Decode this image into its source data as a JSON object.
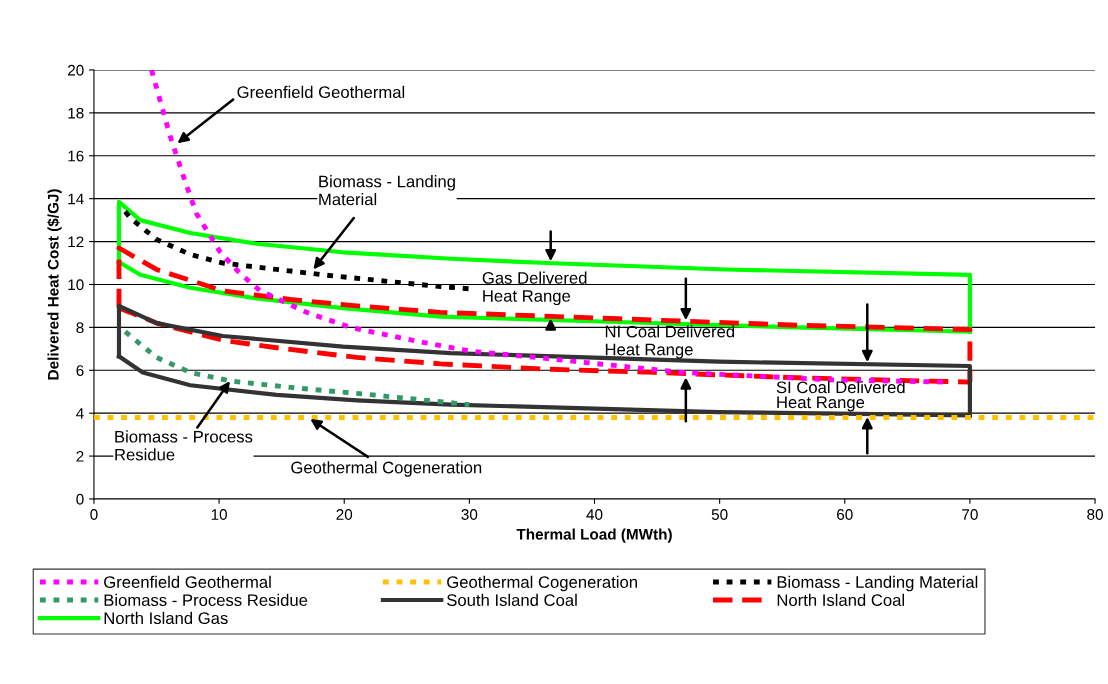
{
  "chart_data": {
    "type": "line",
    "xlabel": "Thermal Load (MWth)",
    "ylabel": "Delivered Heat Cost ($/GJ)",
    "xlim": [
      0,
      80
    ],
    "xticks": [
      0,
      10,
      20,
      30,
      40,
      50,
      60,
      70,
      80
    ],
    "ylim": [
      0,
      20
    ],
    "yticks": [
      0,
      2,
      4,
      6,
      8,
      10,
      12,
      14,
      16,
      18,
      20
    ],
    "grid": "y",
    "legend": "bottom",
    "series": [
      {
        "name": "Greenfield Geothermal",
        "color": "#ff00ff",
        "line_style": "dotted",
        "x": [
          4.6,
          6.1,
          7.4,
          8.2,
          10.1,
          11.7,
          13.3,
          17,
          20.5,
          26.3,
          30,
          37,
          47,
          59,
          68
        ],
        "values": [
          20,
          16.9,
          14.6,
          13.3,
          11.5,
          10.5,
          9.7,
          8.7,
          8.0,
          7.3,
          6.9,
          6.5,
          5.9,
          5.55,
          5.45
        ]
      },
      {
        "name": "Geothermal Cogeneration",
        "color": "#ffc000",
        "line_style": "dotted",
        "x": [
          0,
          80
        ],
        "values": [
          3.8,
          3.8
        ]
      },
      {
        "name": "Biomass - Landing Material",
        "color": "#000000",
        "line_style": "dotted",
        "x": [
          2.5,
          2.9,
          5,
          7.7,
          10.3,
          14.6,
          19.1,
          27.7,
          30
        ],
        "values": [
          13.4,
          13.1,
          12.1,
          11.4,
          11.0,
          10.7,
          10.4,
          9.9,
          9.8
        ]
      },
      {
        "name": "Biomass - Process Residue",
        "color": "#339966",
        "line_style": "dotted",
        "x": [
          2.5,
          2.9,
          5,
          7.7,
          10.9,
          15.7,
          22.3,
          30
        ],
        "values": [
          7.8,
          7.6,
          6.6,
          5.9,
          5.5,
          5.2,
          4.85,
          4.4
        ]
      },
      {
        "name": "South Island Coal",
        "color": "#333333",
        "line_style": "solid",
        "x": [
          2,
          2,
          5,
          10.3,
          19.9,
          28.5,
          49.9,
          70,
          70
        ],
        "values": [
          6.65,
          9.0,
          8.2,
          7.6,
          7.1,
          6.8,
          6.4,
          6.2,
          3.9
        ]
      },
      {
        "color": "#333333",
        "line_style": "solid",
        "x": [
          2,
          3.9,
          7.7,
          14.6,
          21,
          28.5,
          49.9,
          70
        ],
        "values": [
          6.65,
          5.9,
          5.3,
          4.85,
          4.6,
          4.4,
          4.05,
          3.9
        ]
      },
      {
        "name": "North Island Coal",
        "color": "#ff0000",
        "line_style": "dashed",
        "x": [
          2,
          2,
          5,
          10.3,
          15.7,
          21,
          27.7,
          41.9,
          56.2,
          70,
          70
        ],
        "values": [
          8.9,
          11.7,
          10.7,
          9.7,
          9.3,
          9.0,
          8.7,
          8.4,
          8.1,
          7.9,
          5.45
        ]
      },
      {
        "color": "#ff0000",
        "line_style": "dashed",
        "x": [
          2,
          2.9,
          5,
          10.3,
          14.6,
          21,
          27.7,
          36.2,
          44.8,
          56.2,
          70
        ],
        "values": [
          8.9,
          8.7,
          8.2,
          7.4,
          7.05,
          6.6,
          6.3,
          6.05,
          5.9,
          5.65,
          5.45
        ]
      },
      {
        "name": "North Island Gas",
        "color": "#00ff00",
        "line_style": "solid",
        "x": [
          2,
          2,
          3.7,
          7.7,
          13,
          19.9,
          28.5,
          36.2,
          50.5,
          70,
          70
        ],
        "values": [
          11.05,
          13.85,
          13.0,
          12.4,
          11.9,
          11.5,
          11.2,
          11.0,
          10.7,
          10.45,
          7.8
        ]
      },
      {
        "color": "#00ff00",
        "line_style": "solid",
        "x": [
          2,
          3.7,
          7.7,
          13,
          19.9,
          27.7,
          41.9,
          56.2,
          70
        ],
        "values": [
          11.05,
          10.45,
          9.85,
          9.35,
          8.9,
          8.5,
          8.25,
          8.0,
          7.8
        ]
      }
    ],
    "annotations": [
      "Greenfield Geothermal",
      "Biomass - Landing\nMaterial",
      {
        "text": "Biomass - Process\nResidue",
        "x": 11.0,
        "y": 5.6
      },
      {
        "text": "Geothermal Cogeneration",
        "x": 17.1,
        "y": 3.8
      },
      "Gas Delivered\nHeat Range",
      "NI Coal Delivered\nHeat Range",
      "SI Coal Delivered\nHeat Range"
    ]
  }
}
